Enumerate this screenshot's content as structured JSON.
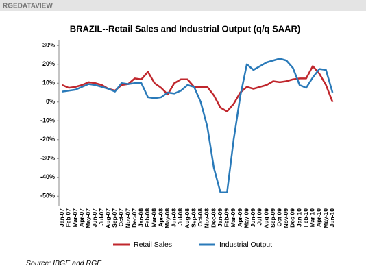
{
  "brand": "RGEDATAVIEW",
  "chart_data": {
    "type": "line",
    "title": "BRAZIL--Retail Sales and Industrial Output (q/q SAAR)",
    "categories": [
      "Jan-07",
      "Feb-07",
      "Mar-07",
      "Apr-07",
      "May-07",
      "Jun-07",
      "Jul-07",
      "Aug-07",
      "Sep-07",
      "Oct-07",
      "Nov-07",
      "Dec-07",
      "Jan-08",
      "Feb-08",
      "Mar-08",
      "Apr-08",
      "May-08",
      "Jun-08",
      "Jul-08",
      "Aug-08",
      "Sep-08",
      "Oct-08",
      "Nov-08",
      "Dec-08",
      "Jan-09",
      "Feb-09",
      "Mar-09",
      "Apr-09",
      "May-09",
      "Jun-09",
      "Jul-09",
      "Aug-09",
      "Sep-09",
      "Oct-09",
      "Nov-09",
      "Dec-09",
      "Jan-10",
      "Feb-10",
      "Mar-10",
      "Apr-10",
      "May-10",
      "Jun-10"
    ],
    "series": [
      {
        "name": "Retail Sales",
        "color": "#c0272d",
        "values": [
          9,
          7.5,
          8,
          9,
          10.5,
          10,
          9,
          7,
          6,
          9,
          9.5,
          12.5,
          12,
          16,
          10,
          7.5,
          4,
          10,
          12,
          12,
          8,
          8,
          8,
          3.5,
          -3,
          -5,
          -1,
          5,
          8,
          7,
          8,
          9,
          11,
          10.5,
          11,
          12,
          12.5,
          12.5,
          19,
          15,
          9,
          0
        ]
      },
      {
        "name": "Industrial Output",
        "color": "#2a7ab9",
        "values": [
          5.5,
          6,
          6.5,
          8,
          9.5,
          9,
          8,
          7,
          5.5,
          10,
          9.5,
          10,
          10,
          2.5,
          2,
          2.5,
          5,
          4.5,
          6,
          9,
          8,
          0,
          -13,
          -35,
          -48,
          -48,
          -20,
          3,
          20,
          17,
          19,
          21,
          22,
          23,
          22,
          18,
          9,
          7.5,
          13,
          17.5,
          17,
          5
        ]
      }
    ],
    "ylim": [
      -55,
      33
    ],
    "yticks": [
      {
        "value": -50,
        "label": "-50%"
      },
      {
        "value": -40,
        "label": "-40%"
      },
      {
        "value": -30,
        "label": "-30%"
      },
      {
        "value": -20,
        "label": "-20%"
      },
      {
        "value": -10,
        "label": "-10%"
      },
      {
        "value": 0,
        "label": "0%"
      },
      {
        "value": 10,
        "label": "10%"
      },
      {
        "value": 20,
        "label": "20%"
      },
      {
        "value": 30,
        "label": "30%"
      }
    ],
    "grid": false,
    "legend": "bottom",
    "source": "Source: IBGE and RGE"
  }
}
